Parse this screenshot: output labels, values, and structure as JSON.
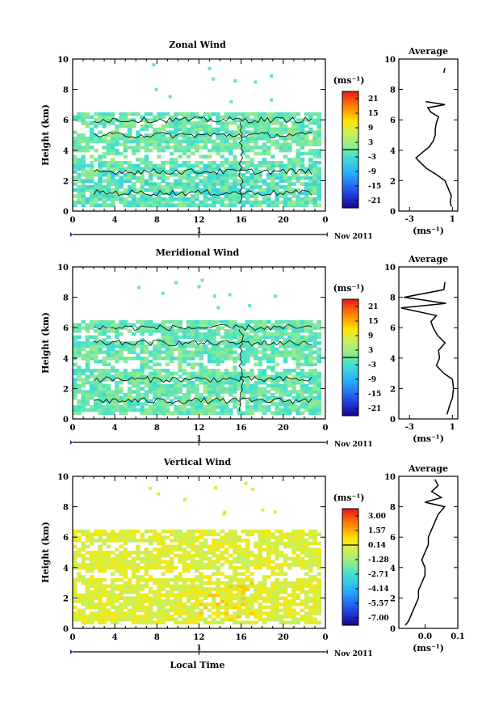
{
  "chart_data": [
    {
      "type": "heatmap",
      "title": "Zonal Wind",
      "ylabel": "Height (km)",
      "unit_label": "(ms⁻¹)",
      "xticks": [
        "0",
        "4",
        "8",
        "12",
        "16",
        "20",
        "0"
      ],
      "yticks": [
        "0",
        "2",
        "4",
        "6",
        "8",
        "10"
      ],
      "xlim": [
        0,
        24
      ],
      "ylim": [
        0,
        10
      ],
      "date_marker": "1",
      "date_label": "Nov 2011",
      "colorbar_ticks": [
        "21",
        "15",
        "9",
        "3",
        "-3",
        "-9",
        "-15",
        "-21"
      ],
      "colorbar_range": [
        -24,
        24
      ],
      "data_extent": {
        "x": [
          0,
          24
        ],
        "y_base": [
          0.3,
          6.5
        ]
      },
      "dominant_value": 0,
      "avg_profile": {
        "title": "Average",
        "xlabel": "(ms⁻¹)",
        "xticks": [
          "-3",
          "1"
        ],
        "xlim": [
          -4,
          1.5
        ],
        "yticks": [
          "0",
          "2",
          "4",
          "6",
          "8",
          "10"
        ],
        "height": [
          0.3,
          0.6,
          1.0,
          1.5,
          2.0,
          2.4,
          2.8,
          3.2,
          3.5,
          3.8,
          4.2,
          4.6,
          5.0,
          5.4,
          5.8,
          6.2,
          6.5,
          6.8,
          7.0,
          7.2,
          9.1,
          9.4
        ],
        "value": [
          0.9,
          0.8,
          0.9,
          0.6,
          0.3,
          -0.5,
          -1.4,
          -2.0,
          -2.4,
          -1.9,
          -1.2,
          -0.8,
          -0.6,
          -0.6,
          -0.5,
          -0.3,
          -1.0,
          -1.3,
          0.3,
          -1.5,
          0.2,
          0.3
        ]
      }
    },
    {
      "type": "heatmap",
      "title": "Meridional Wind",
      "ylabel": "Height (km)",
      "unit_label": "(ms⁻¹)",
      "xticks": [
        "0",
        "4",
        "8",
        "12",
        "16",
        "20",
        "0"
      ],
      "yticks": [
        "0",
        "2",
        "4",
        "6",
        "8",
        "10"
      ],
      "xlim": [
        0,
        24
      ],
      "ylim": [
        0,
        10
      ],
      "date_marker": "1",
      "date_label": "Nov 2011",
      "colorbar_ticks": [
        "21",
        "15",
        "9",
        "3",
        "-3",
        "-9",
        "-15",
        "-21"
      ],
      "colorbar_range": [
        -24,
        24
      ],
      "data_extent": {
        "x": [
          0,
          24
        ],
        "y_base": [
          0.3,
          6.5
        ]
      },
      "dominant_value": 0,
      "avg_profile": {
        "title": "Average",
        "xlabel": "(ms⁻¹)",
        "xticks": [
          "-3",
          "1"
        ],
        "xlim": [
          -4,
          1.5
        ],
        "yticks": [
          "0",
          "2",
          "4",
          "6",
          "8",
          "10"
        ],
        "height": [
          0.3,
          0.8,
          1.4,
          2.0,
          2.6,
          3.0,
          3.5,
          4.0,
          4.5,
          5.0,
          5.5,
          6.0,
          6.4,
          6.8,
          7.3,
          7.6,
          8.0,
          8.5,
          9.0
        ],
        "value": [
          0.5,
          0.7,
          1.0,
          1.1,
          1.0,
          0.2,
          -0.5,
          -0.2,
          -0.3,
          0.3,
          -0.4,
          -0.8,
          -1.0,
          -0.5,
          -3.8,
          0.4,
          -3.5,
          0.2,
          0.3
        ]
      }
    },
    {
      "type": "heatmap",
      "title": "Vertical Wind",
      "ylabel": "Height (km)",
      "xlabel": "Local Time",
      "unit_label": "(ms⁻¹)",
      "xticks": [
        "0",
        "4",
        "8",
        "12",
        "16",
        "20",
        "0"
      ],
      "yticks": [
        "0",
        "2",
        "4",
        "6",
        "8",
        "10"
      ],
      "xlim": [
        0,
        24
      ],
      "ylim": [
        0,
        10
      ],
      "date_marker": "1",
      "date_label": "Nov 2011",
      "colorbar_ticks": [
        "3.00",
        "1.57",
        "0.14",
        "-1.28",
        "-2.71",
        "-4.14",
        "-5.57",
        "-7.00"
      ],
      "colorbar_range": [
        -7.7,
        3.7
      ],
      "data_extent": {
        "x": [
          0,
          24
        ],
        "y_base": [
          0.3,
          6.5
        ]
      },
      "dominant_value": 0.14,
      "avg_profile": {
        "title": "Average",
        "xlabel": "(ms⁻¹)",
        "xticks": [
          "0.0",
          "0.1"
        ],
        "xlim": [
          -0.08,
          0.1
        ],
        "yticks": [
          "0",
          "2",
          "4",
          "6",
          "8",
          "10"
        ],
        "height": [
          0.2,
          0.5,
          1.0,
          1.5,
          2.0,
          2.5,
          3.0,
          3.5,
          4.0,
          4.5,
          5.0,
          5.5,
          6.0,
          6.5,
          7.0,
          7.5,
          8.0,
          8.3,
          8.6,
          9.0,
          9.4,
          9.8
        ],
        "value": [
          -0.06,
          -0.05,
          -0.04,
          -0.03,
          -0.02,
          -0.02,
          -0.01,
          0.0,
          0.0,
          -0.01,
          0.0,
          0.01,
          0.01,
          0.02,
          0.03,
          0.04,
          0.06,
          0.0,
          0.05,
          0.02,
          0.04,
          0.03
        ]
      }
    }
  ]
}
